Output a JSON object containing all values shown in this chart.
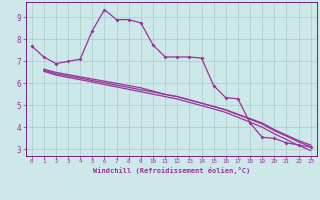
{
  "xlabel": "Windchill (Refroidissement éolien,°C)",
  "bg_color": "#cce8e8",
  "grid_color": "#aacccc",
  "line_color": "#993399",
  "spine_color": "#660066",
  "xlim": [
    -0.5,
    23.5
  ],
  "ylim": [
    2.7,
    9.7
  ],
  "yticks": [
    3,
    4,
    5,
    6,
    7,
    8,
    9
  ],
  "xticks": [
    0,
    1,
    2,
    3,
    4,
    5,
    6,
    7,
    8,
    9,
    10,
    11,
    12,
    13,
    14,
    15,
    16,
    17,
    18,
    19,
    20,
    21,
    22,
    23
  ],
  "line1_x": [
    0,
    1,
    2,
    3,
    4,
    5,
    6,
    7,
    8,
    9,
    10,
    11,
    12,
    13,
    14,
    15,
    16,
    17,
    18,
    19,
    20,
    21,
    22,
    23
  ],
  "line1_y": [
    7.7,
    7.2,
    6.9,
    7.0,
    7.1,
    8.4,
    9.35,
    8.9,
    8.9,
    8.75,
    7.75,
    7.2,
    7.2,
    7.2,
    7.15,
    5.9,
    5.35,
    5.3,
    4.2,
    3.55,
    3.5,
    3.3,
    3.2,
    3.1
  ],
  "line2_x": [
    1,
    2,
    3,
    4,
    5,
    6,
    7,
    8,
    9,
    10,
    11,
    12,
    13,
    14,
    15,
    16,
    17,
    18,
    19,
    20,
    21,
    22,
    23
  ],
  "line2_y": [
    6.65,
    6.5,
    6.4,
    6.3,
    6.2,
    6.1,
    6.0,
    5.9,
    5.8,
    5.65,
    5.5,
    5.4,
    5.25,
    5.1,
    4.95,
    4.8,
    4.6,
    4.4,
    4.2,
    3.9,
    3.65,
    3.4,
    3.2
  ],
  "line3_x": [
    1,
    2,
    3,
    4,
    5,
    6,
    7,
    8,
    9,
    10,
    11,
    12,
    13,
    14,
    15,
    16,
    17,
    18,
    19,
    20,
    21,
    22,
    23
  ],
  "line3_y": [
    6.6,
    6.44,
    6.34,
    6.24,
    6.13,
    6.03,
    5.92,
    5.82,
    5.71,
    5.61,
    5.5,
    5.4,
    5.25,
    5.1,
    4.95,
    4.79,
    4.58,
    4.37,
    4.15,
    3.85,
    3.6,
    3.34,
    3.12
  ],
  "line4_x": [
    1,
    2,
    3,
    4,
    5,
    6,
    7,
    8,
    9,
    10,
    11,
    12,
    13,
    14,
    15,
    16,
    17,
    18,
    19,
    20,
    21,
    22,
    23
  ],
  "line4_y": [
    6.55,
    6.38,
    6.27,
    6.17,
    6.06,
    5.95,
    5.84,
    5.73,
    5.62,
    5.51,
    5.4,
    5.29,
    5.14,
    4.99,
    4.84,
    4.68,
    4.46,
    4.24,
    4.01,
    3.71,
    3.45,
    3.18,
    2.95
  ]
}
